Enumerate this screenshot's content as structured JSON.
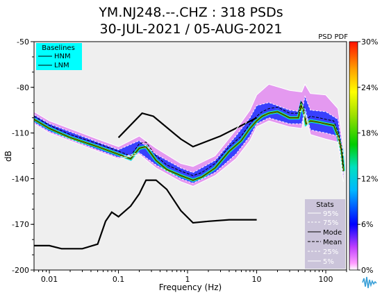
{
  "chart_data": {
    "type": "heatmap",
    "title": "YM.NJ248.--.CHZ : 318 PSDs",
    "subtitle": "30-JUL-2021 / 05-AUG-2021",
    "corner_label": "PSD PDF",
    "xlabel": "Frequency (Hz)",
    "ylabel": "dB",
    "x_scale": "log",
    "xlim": [
      0.006,
      200
    ],
    "ylim": [
      -200,
      -50
    ],
    "x_ticks": [
      {
        "value": 0.01,
        "label": "0.01"
      },
      {
        "value": 0.1,
        "label": "0.1"
      },
      {
        "value": 1,
        "label": "1"
      },
      {
        "value": 10,
        "label": "10"
      },
      {
        "value": 100,
        "label": "100"
      }
    ],
    "y_ticks": [
      {
        "value": -50,
        "label": "-50"
      },
      {
        "value": -80,
        "label": "-80"
      },
      {
        "value": -110,
        "label": "-110"
      },
      {
        "value": -140,
        "label": "-140"
      },
      {
        "value": -170,
        "label": "-170"
      },
      {
        "value": -200,
        "label": "-200"
      }
    ],
    "colorbar": {
      "ticks": [
        "0%",
        "6%",
        "12%",
        "18%",
        "24%",
        "30%"
      ],
      "range": [
        0,
        30
      ],
      "colors": [
        "#ffffff",
        "#ff7bff",
        "#a828ff",
        "#0000ff",
        "#00b8ff",
        "#00e0c0",
        "#00cc00",
        "#a0e000",
        "#ffff00",
        "#ffa000",
        "#ff2000"
      ]
    },
    "baselines_legend": {
      "title": "Baselines",
      "entries": [
        "HNM",
        "LNM"
      ],
      "background": "#00ffff"
    },
    "stats_legend": {
      "title": "Stats",
      "entries": [
        "95%",
        "75%",
        "Mode",
        "Mean",
        "25%",
        "5%"
      ]
    },
    "series": [
      {
        "name": "HNM",
        "x": [
          0.1,
          0.22,
          0.32,
          0.8,
          1.2,
          3,
          10
        ],
        "y": [
          -113,
          -97,
          -99,
          -114,
          -119,
          -112,
          -100
        ]
      },
      {
        "name": "LNM",
        "x": [
          0.006,
          0.01,
          0.015,
          0.03,
          0.05,
          0.065,
          0.08,
          0.1,
          0.15,
          0.2,
          0.25,
          0.35,
          0.5,
          0.8,
          1.2,
          2,
          4,
          6,
          10
        ],
        "y": [
          -184,
          -184,
          -186,
          -186,
          -183,
          -168,
          -162,
          -165,
          -158,
          -150,
          -141,
          -141,
          -147,
          -161,
          -169,
          -168,
          -167,
          -167,
          -167
        ]
      },
      {
        "name": "Mode",
        "x": [
          0.006,
          0.01,
          0.02,
          0.05,
          0.1,
          0.15,
          0.2,
          0.25,
          0.35,
          0.5,
          0.8,
          1.2,
          1.6,
          2.5,
          4,
          6,
          8,
          10,
          12,
          15,
          20,
          30,
          40,
          44,
          48,
          52,
          60,
          80,
          100,
          130,
          150,
          170,
          180
        ],
        "y": [
          -101,
          -107,
          -113,
          -119,
          -124,
          -127,
          -120,
          -119,
          -128,
          -134,
          -138,
          -141,
          -139,
          -133,
          -122,
          -115,
          -107,
          -102,
          -99,
          -97,
          -96,
          -100,
          -100,
          -92,
          -96,
          -104,
          -102,
          -103,
          -104,
          -105,
          -112,
          -122,
          -135
        ]
      },
      {
        "name": "Mean",
        "x": [
          0.006,
          0.01,
          0.02,
          0.05,
          0.1,
          0.15,
          0.2,
          0.25,
          0.35,
          0.5,
          0.8,
          1.2,
          1.6,
          2.5,
          4,
          6,
          8,
          10,
          12,
          15,
          20,
          30,
          40,
          44,
          48,
          52,
          60,
          80,
          100,
          130,
          150,
          170,
          180
        ],
        "y": [
          -99,
          -105,
          -111,
          -117,
          -122,
          -125,
          -117,
          -116,
          -125,
          -131,
          -135,
          -138,
          -136,
          -130,
          -119,
          -112,
          -104,
          -99,
          -96,
          -94,
          -93,
          -97,
          -97,
          -89,
          -93,
          -101,
          -99,
          -100,
          -101,
          -102,
          -109,
          -119,
          -132
        ]
      },
      {
        "name": "95%",
        "x": [
          0.006,
          0.01,
          0.05,
          0.1,
          0.2,
          0.35,
          0.8,
          1.2,
          2.5,
          5,
          8,
          10,
          15,
          30,
          45,
          50,
          60,
          100,
          150,
          180
        ],
        "y": [
          -96,
          -102,
          -114,
          -119,
          -112,
          -120,
          -130,
          -132,
          -125,
          -108,
          -95,
          -85,
          -78,
          -82,
          -83,
          -78,
          -84,
          -85,
          -94,
          -120
        ]
      },
      {
        "name": "75%",
        "x": [
          0.006,
          0.01,
          0.05,
          0.1,
          0.2,
          0.35,
          0.8,
          1.2,
          2.5,
          5,
          8,
          10,
          15,
          30,
          45,
          50,
          60,
          100,
          150,
          180
        ],
        "y": [
          -98,
          -104,
          -116,
          -121,
          -115,
          -124,
          -133,
          -136,
          -128,
          -112,
          -100,
          -92,
          -90,
          -95,
          -96,
          -86,
          -95,
          -96,
          -101,
          -125
        ]
      },
      {
        "name": "25%",
        "x": [
          0.006,
          0.01,
          0.05,
          0.1,
          0.2,
          0.35,
          0.8,
          1.2,
          2.5,
          5,
          8,
          10,
          15,
          30,
          45,
          50,
          60,
          100,
          150,
          180
        ],
        "y": [
          -103,
          -109,
          -121,
          -126,
          -123,
          -131,
          -140,
          -143,
          -136,
          -124,
          -112,
          -104,
          -100,
          -104,
          -104,
          -94,
          -108,
          -110,
          -112,
          -138
        ]
      },
      {
        "name": "5%",
        "x": [
          0.006,
          0.01,
          0.05,
          0.1,
          0.2,
          0.35,
          0.8,
          1.2,
          2.5,
          5,
          8,
          10,
          15,
          30,
          45,
          50,
          60,
          100,
          150,
          180
        ],
        "y": [
          -104,
          -110,
          -122,
          -127,
          -124,
          -133,
          -142,
          -145,
          -138,
          -127,
          -115,
          -106,
          -102,
          -106,
          -107,
          -97,
          -111,
          -114,
          -116,
          -142
        ]
      }
    ]
  }
}
